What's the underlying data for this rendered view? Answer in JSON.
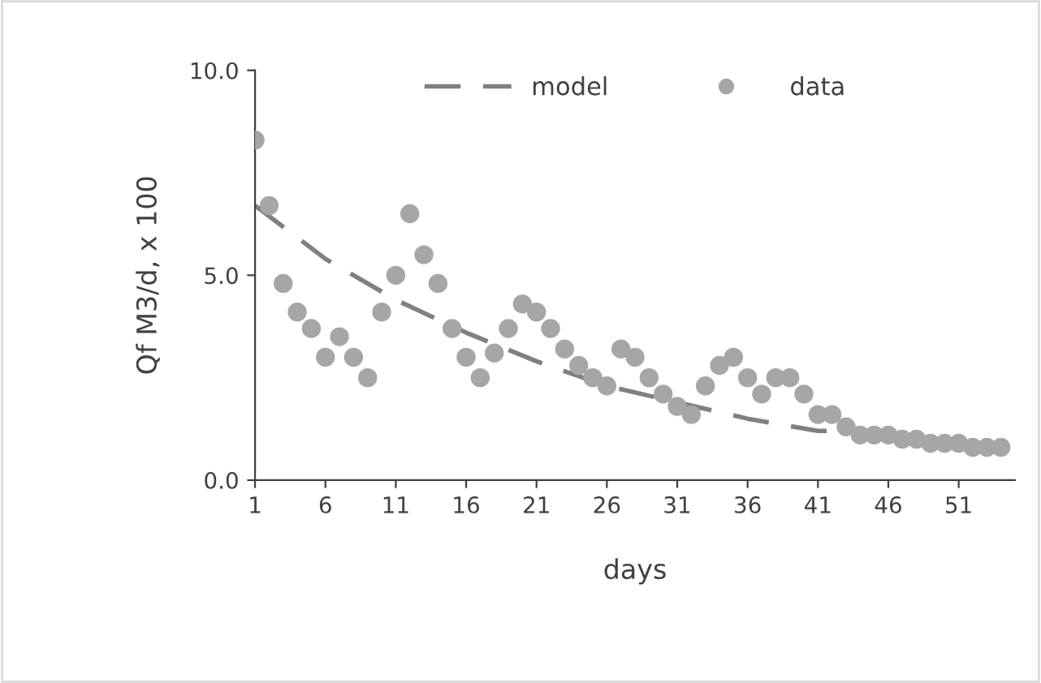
{
  "chart_data": {
    "type": "scatter",
    "xlabel": "days",
    "ylabel": "Qf M3/d, x 100",
    "xlim": [
      1,
      55
    ],
    "xticks": [
      1,
      6,
      11,
      16,
      21,
      26,
      31,
      36,
      41,
      46,
      51
    ],
    "ylim": [
      0,
      10
    ],
    "yticks": [
      {
        "value": 0,
        "label": "0.0"
      },
      {
        "value": 5,
        "label": "5.0"
      },
      {
        "value": 10,
        "label": "10.0"
      }
    ],
    "grid": false,
    "legend": "top",
    "series": [
      {
        "name": "model",
        "type": "line",
        "line_style": "dashed",
        "marker": "none",
        "color": "#808080",
        "x": [
          1,
          6,
          11,
          16,
          21,
          26,
          31,
          36,
          41,
          42
        ],
        "values": [
          6.7,
          5.4,
          4.4,
          3.6,
          2.9,
          2.3,
          1.9,
          1.5,
          1.2,
          1.2
        ]
      },
      {
        "name": "data",
        "marker": "circle",
        "color": "#a6a6a6",
        "x": [
          1,
          2,
          3,
          4,
          5,
          6,
          7,
          8,
          9,
          10,
          11,
          12,
          13,
          14,
          15,
          16,
          17,
          18,
          19,
          20,
          21,
          22,
          23,
          24,
          25,
          26,
          27,
          28,
          29,
          30,
          31,
          32,
          33,
          34,
          35,
          36,
          37,
          38,
          39,
          40,
          41,
          42,
          43,
          44,
          45,
          46,
          47,
          48,
          49,
          50,
          51,
          52,
          53,
          54
        ],
        "values": [
          8.3,
          6.7,
          4.8,
          4.1,
          3.7,
          3.0,
          3.5,
          3.0,
          2.5,
          4.1,
          5.0,
          6.5,
          5.5,
          4.8,
          3.7,
          3.0,
          2.5,
          3.1,
          3.7,
          4.3,
          4.1,
          3.7,
          3.2,
          2.8,
          2.5,
          2.3,
          3.2,
          3.0,
          2.5,
          2.1,
          1.8,
          1.6,
          2.3,
          2.8,
          3.0,
          2.5,
          2.1,
          2.5,
          2.5,
          2.1,
          1.6,
          1.6,
          1.3,
          1.1,
          1.1,
          1.1,
          1.0,
          1.0,
          0.9,
          0.9,
          0.9,
          0.8,
          0.8,
          0.8
        ]
      }
    ]
  }
}
